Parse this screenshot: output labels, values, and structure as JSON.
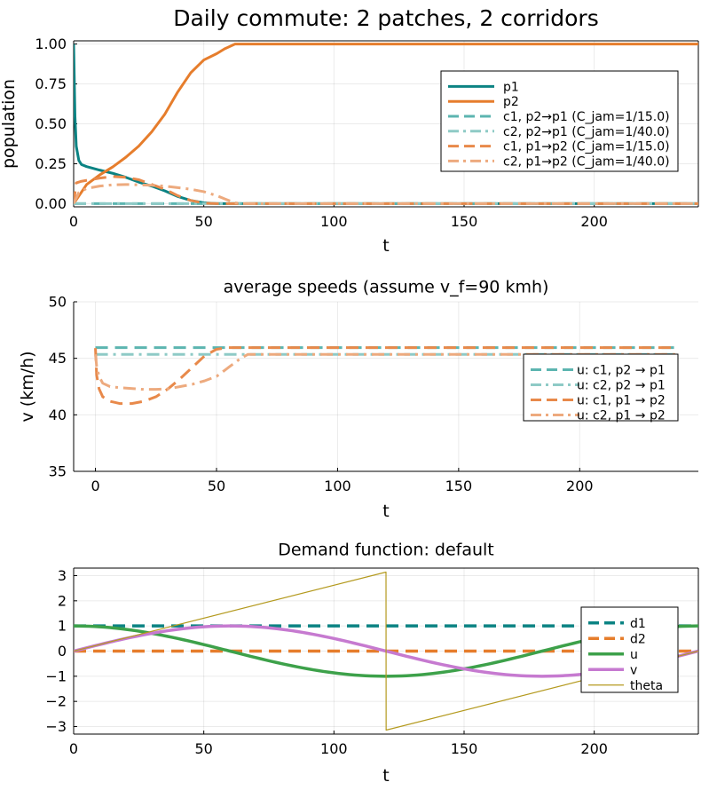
{
  "chart_data": [
    {
      "type": "line",
      "title": "Daily commute: 2 patches, 2 corridors",
      "xlabel": "t",
      "ylabel": "population",
      "xlim": [
        0,
        240
      ],
      "ylim": [
        -0.02,
        1.02
      ],
      "xticks": [
        0,
        50,
        100,
        150,
        200
      ],
      "yticks": [
        0,
        0.25,
        0.5,
        0.75,
        1.0
      ],
      "ytick_labels": [
        "0.00",
        "0.25",
        "0.50",
        "0.75",
        "1.00"
      ],
      "grid": true,
      "legend_position": "top-right",
      "series": [
        {
          "name": "p1",
          "color": "#0b8383",
          "dash": "solid",
          "width": 3,
          "points": [
            [
              0,
              1.0
            ],
            [
              0.5,
              0.55
            ],
            [
              1,
              0.36
            ],
            [
              2,
              0.27
            ],
            [
              3,
              0.245
            ],
            [
              5,
              0.232
            ],
            [
              10,
              0.21
            ],
            [
              15,
              0.19
            ],
            [
              20,
              0.165
            ],
            [
              25,
              0.135
            ],
            [
              30,
              0.11
            ],
            [
              35,
              0.08
            ],
            [
              40,
              0.045
            ],
            [
              45,
              0.02
            ],
            [
              50,
              0.005
            ],
            [
              55,
              0
            ],
            [
              240,
              0
            ]
          ]
        },
        {
          "name": "p2",
          "color": "#e67d2c",
          "dash": "solid",
          "width": 3,
          "points": [
            [
              0,
              0
            ],
            [
              5,
              0.12
            ],
            [
              10,
              0.18
            ],
            [
              15,
              0.23
            ],
            [
              20,
              0.29
            ],
            [
              25,
              0.36
            ],
            [
              30,
              0.45
            ],
            [
              35,
              0.56
            ],
            [
              40,
              0.7
            ],
            [
              45,
              0.82
            ],
            [
              50,
              0.9
            ],
            [
              55,
              0.94
            ],
            [
              58,
              0.97
            ],
            [
              62,
              1.0
            ],
            [
              240,
              1.0
            ]
          ]
        },
        {
          "name": "c1, p2→p1 (C_jam=1/15.0)",
          "color": "#5cb5b0",
          "dash": "dash",
          "width": 3,
          "points": [
            [
              0,
              0
            ],
            [
              240,
              0
            ]
          ]
        },
        {
          "name": "c2, p2→p1 (C_jam=1/40.0)",
          "color": "#8ecac6",
          "dash": "dashdot",
          "width": 3,
          "points": [
            [
              0,
              0
            ],
            [
              240,
              0
            ]
          ]
        },
        {
          "name": "c1, p1→p2 (C_jam=1/15.0)",
          "color": "#e8894a",
          "dash": "dash",
          "width": 3,
          "points": [
            [
              0,
              0
            ],
            [
              1,
              0.13
            ],
            [
              3,
              0.14
            ],
            [
              10,
              0.16
            ],
            [
              15,
              0.17
            ],
            [
              20,
              0.165
            ],
            [
              25,
              0.15
            ],
            [
              30,
              0.12
            ],
            [
              35,
              0.09
            ],
            [
              40,
              0.05
            ],
            [
              45,
              0.02
            ],
            [
              50,
              0.003
            ],
            [
              55,
              0
            ],
            [
              240,
              0
            ]
          ]
        },
        {
          "name": "c2, p1→p2 (C_jam=1/40.0)",
          "color": "#edaa7e",
          "dash": "dashdot",
          "width": 3,
          "points": [
            [
              0,
              0
            ],
            [
              2,
              0.07
            ],
            [
              5,
              0.095
            ],
            [
              10,
              0.11
            ],
            [
              15,
              0.118
            ],
            [
              20,
              0.12
            ],
            [
              25,
              0.118
            ],
            [
              30,
              0.115
            ],
            [
              35,
              0.11
            ],
            [
              40,
              0.1
            ],
            [
              45,
              0.09
            ],
            [
              50,
              0.075
            ],
            [
              55,
              0.05
            ],
            [
              58,
              0.03
            ],
            [
              62,
              0.005
            ],
            [
              65,
              0
            ],
            [
              240,
              0
            ]
          ]
        }
      ]
    },
    {
      "type": "line",
      "title": "average speeds (assume v_f=90 kmh)",
      "xlabel": "t",
      "ylabel": "v (km/h)",
      "xlim": [
        -9,
        249
      ],
      "ylim": [
        35,
        50
      ],
      "xticks": [
        0,
        50,
        100,
        150,
        200
      ],
      "yticks": [
        35,
        40,
        45,
        50
      ],
      "ytick_labels": [
        "35",
        "40",
        "45",
        "50"
      ],
      "grid": true,
      "legend_position": "right",
      "series": [
        {
          "name": "u: c1, p2 → p1",
          "color": "#5cb5b0",
          "dash": "dash",
          "width": 3,
          "points": [
            [
              0,
              45.95
            ],
            [
              240,
              45.95
            ]
          ]
        },
        {
          "name": "u: c2, p2 → p1",
          "color": "#8ecac6",
          "dash": "dashdot",
          "width": 3,
          "points": [
            [
              0,
              45.35
            ],
            [
              240,
              45.35
            ]
          ]
        },
        {
          "name": "u: c1, p1 → p2",
          "color": "#e8894a",
          "dash": "dash",
          "width": 3,
          "points": [
            [
              0,
              45.9
            ],
            [
              0.5,
              43.5
            ],
            [
              1.5,
              42.3
            ],
            [
              3,
              41.6
            ],
            [
              6,
              41.2
            ],
            [
              10,
              41.0
            ],
            [
              15,
              41.0
            ],
            [
              20,
              41.2
            ],
            [
              25,
              41.6
            ],
            [
              30,
              42.3
            ],
            [
              35,
              43.2
            ],
            [
              40,
              44.2
            ],
            [
              45,
              45.2
            ],
            [
              50,
              45.8
            ],
            [
              55,
              45.95
            ],
            [
              240,
              45.95
            ]
          ]
        },
        {
          "name": "u: c2, p1 → p2",
          "color": "#edaa7e",
          "dash": "dashdot",
          "width": 3,
          "points": [
            [
              0,
              45.35
            ],
            [
              0.5,
              44.3
            ],
            [
              1.5,
              43.4
            ],
            [
              3,
              42.8
            ],
            [
              6,
              42.5
            ],
            [
              10,
              42.4
            ],
            [
              20,
              42.25
            ],
            [
              25,
              42.25
            ],
            [
              30,
              42.3
            ],
            [
              35,
              42.5
            ],
            [
              40,
              42.7
            ],
            [
              45,
              43.0
            ],
            [
              50,
              43.4
            ],
            [
              55,
              44.2
            ],
            [
              60,
              45.0
            ],
            [
              63,
              45.35
            ],
            [
              240,
              45.35
            ]
          ]
        }
      ]
    },
    {
      "type": "line",
      "title": "Demand function: default",
      "xlabel": "t",
      "ylabel": "",
      "xlim": [
        0,
        240
      ],
      "ylim": [
        -3.3,
        3.3
      ],
      "xticks": [
        0,
        50,
        100,
        150,
        200
      ],
      "yticks": [
        -3,
        -2,
        -1,
        0,
        1,
        2,
        3
      ],
      "ytick_labels": [
        "−3",
        "−2",
        "−1",
        "0",
        "1",
        "2",
        "3"
      ],
      "grid": true,
      "legend_position": "right",
      "series": [
        {
          "name": "d1",
          "color": "#0b8383",
          "dash": "dash",
          "width": 3.5,
          "points": [
            [
              0,
              1
            ],
            [
              240,
              1
            ]
          ]
        },
        {
          "name": "d2",
          "color": "#e67d2c",
          "dash": "dash",
          "width": 3.5,
          "points": [
            [
              0,
              0
            ],
            [
              240,
              0
            ]
          ]
        },
        {
          "name": "u",
          "color": "#3da14a",
          "dash": "solid",
          "width": 3.5,
          "func": "cos",
          "period": 240
        },
        {
          "name": "v",
          "color": "#c67ad0",
          "dash": "solid",
          "width": 3.5,
          "func": "sin",
          "period": 240
        },
        {
          "name": "theta",
          "color": "#b49a1f",
          "dash": "solid",
          "width": 1.2,
          "points": [
            [
              0,
              0
            ],
            [
              120,
              3.1416
            ],
            [
              120.05,
              -3.1416
            ],
            [
              240,
              0
            ]
          ]
        }
      ]
    }
  ]
}
